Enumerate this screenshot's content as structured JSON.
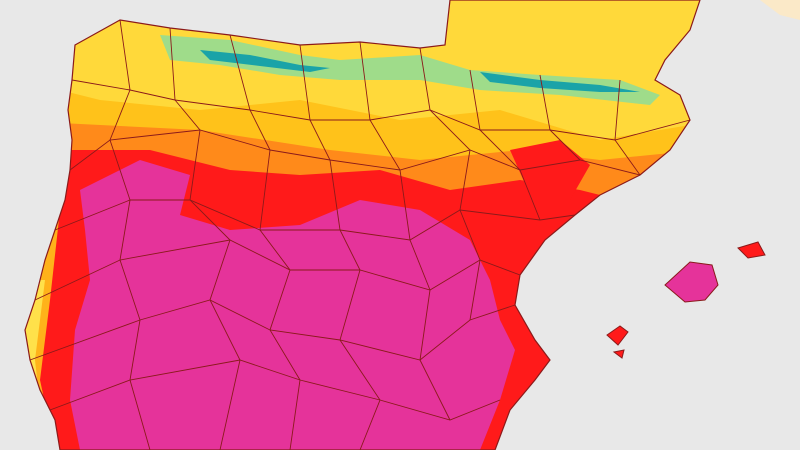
{
  "map": {
    "colors": {
      "sea": "#e8e8e8",
      "border": "#8b1a1a",
      "extreme": "#e5339a",
      "very_hot": "#ff1a1a",
      "hot": "#ff8a1a",
      "warm": "#ffc21a",
      "mild": "#ffe14a",
      "cool": "#5fcf8f",
      "coldest": "#1aa3a8"
    }
  }
}
